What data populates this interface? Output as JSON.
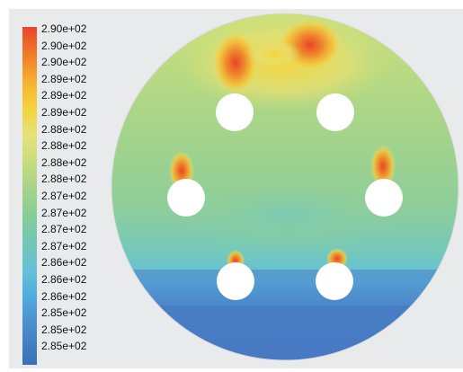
{
  "colorbar": {
    "ticks": [
      "2.90e+02",
      "2.90e+02",
      "2.90e+02",
      "2.89e+02",
      "2.89e+02",
      "2.89e+02",
      "2.88e+02",
      "2.88e+02",
      "2.88e+02",
      "2.88e+02",
      "2.87e+02",
      "2.87e+02",
      "2.87e+02",
      "2.87e+02",
      "2.86e+02",
      "2.86e+02",
      "2.86e+02",
      "2.85e+02",
      "2.85e+02",
      "2.85e+02"
    ]
  },
  "colors": {
    "max": "#e8452a",
    "high": "#f5b030",
    "mid_high": "#e5e27a",
    "mid": "#a6d38a",
    "mid_low": "#73c6b7",
    "low": "#52a9df",
    "min": "#3b6fb7"
  }
}
